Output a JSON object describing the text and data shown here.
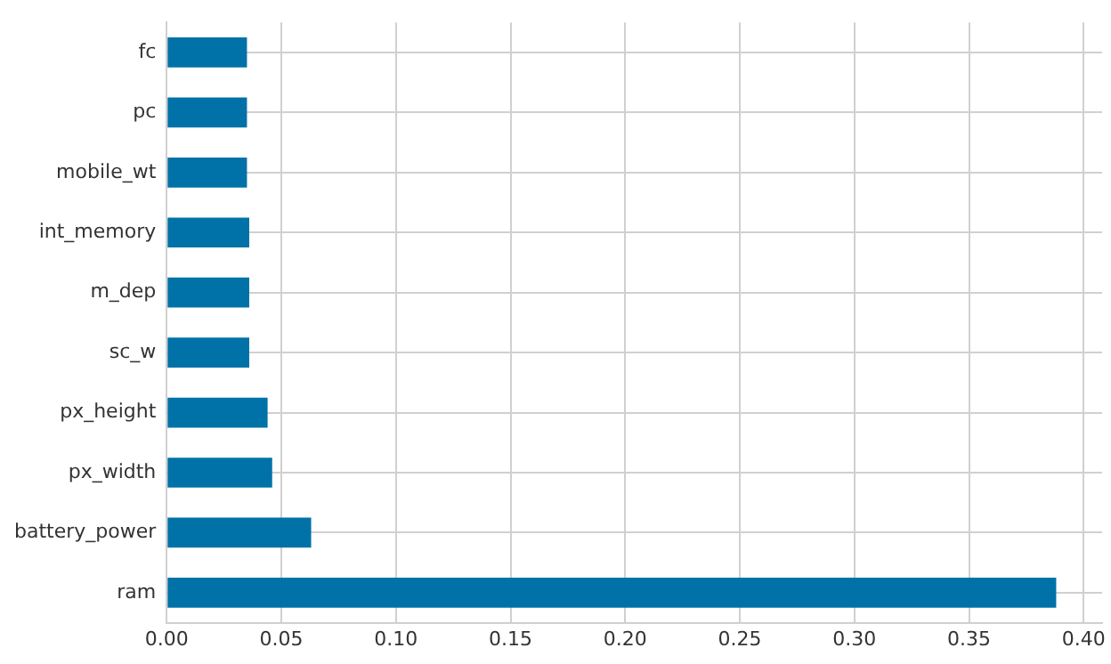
{
  "chart_data": {
    "type": "bar",
    "orientation": "horizontal",
    "categories": [
      "fc",
      "pc",
      "mobile_wt",
      "int_memory",
      "m_dep",
      "sc_w",
      "px_height",
      "px_width",
      "battery_power",
      "ram"
    ],
    "values": [
      0.035,
      0.035,
      0.035,
      0.036,
      0.036,
      0.036,
      0.044,
      0.046,
      0.063,
      0.388
    ],
    "color": "#0072a8",
    "xlim": [
      0,
      0.408
    ],
    "xticks": [
      {
        "value": 0,
        "label": "0.00"
      },
      {
        "value": 0.05,
        "label": "0.05"
      },
      {
        "value": 0.1,
        "label": "0.10"
      },
      {
        "value": 0.15,
        "label": "0.15"
      },
      {
        "value": 0.2,
        "label": "0.20"
      },
      {
        "value": 0.25,
        "label": "0.25"
      },
      {
        "value": 0.3,
        "label": "0.30"
      },
      {
        "value": 0.35,
        "label": "0.35"
      },
      {
        "value": 0.4,
        "label": "0.40"
      }
    ],
    "grid": true
  }
}
